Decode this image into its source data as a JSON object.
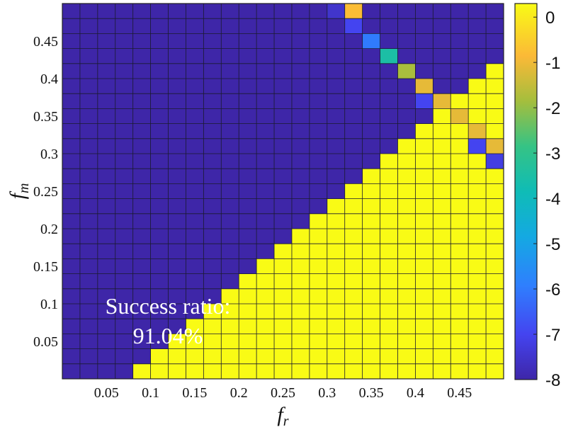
{
  "chart_data": {
    "type": "heatmap",
    "title": "",
    "xlabel": "f",
    "xlabel_sub": "r",
    "ylabel": "f",
    "ylabel_sub": "m",
    "grid_size": [
      25,
      25
    ],
    "xlim": [
      0,
      0.5
    ],
    "ylim": [
      0,
      0.5
    ],
    "x_ticks": [
      0.05,
      0.1,
      0.15,
      0.2,
      0.25,
      0.3,
      0.35,
      0.4,
      0.45
    ],
    "x_tick_labels": [
      "0.05",
      "0.1",
      "0.15",
      "0.2",
      "0.25",
      "0.3",
      "0.35",
      "0.4",
      "0.45"
    ],
    "y_ticks": [
      0.05,
      0.1,
      0.15,
      0.2,
      0.25,
      0.3,
      0.35,
      0.4,
      0.45
    ],
    "y_tick_labels": [
      "0.05",
      "0.1",
      "0.15",
      "0.2",
      "0.25",
      "0.3",
      "0.35",
      "0.4",
      "0.45"
    ],
    "colorbar": {
      "range": [
        -8,
        0.3
      ],
      "ticks": [
        0,
        -1,
        -2,
        -3,
        -4,
        -5,
        -6,
        -7,
        -8
      ],
      "tick_labels": [
        "0",
        "-1",
        "-2",
        "-3",
        "-4",
        "-5",
        "-6",
        "-7",
        "-8"
      ],
      "colormap": "parula"
    },
    "background_value": -8,
    "saturated_value": 0.3,
    "saturated_region": "cells where column index + row-from-top index >= 28 (upper-right triangle)",
    "cells": [
      {
        "col": 15,
        "row_from_top": 0,
        "value": -7.5
      },
      {
        "col": 16,
        "row_from_top": 0,
        "value": -0.8
      },
      {
        "col": 16,
        "row_from_top": 1,
        "value": -7.0
      },
      {
        "col": 17,
        "row_from_top": 2,
        "value": -6.0
      },
      {
        "col": 18,
        "row_from_top": 3,
        "value": -3.5
      },
      {
        "col": 19,
        "row_from_top": 4,
        "value": -1.8
      },
      {
        "col": 20,
        "row_from_top": 5,
        "value": -1.1
      },
      {
        "col": 20,
        "row_from_top": 6,
        "value": -7.0
      },
      {
        "col": 21,
        "row_from_top": 6,
        "value": -1.1
      },
      {
        "col": 22,
        "row_from_top": 7,
        "value": -1.1
      },
      {
        "col": 23,
        "row_from_top": 8,
        "value": -1.1
      },
      {
        "col": 23,
        "row_from_top": 9,
        "value": -7.0
      },
      {
        "col": 24,
        "row_from_top": 9,
        "value": -1.1
      },
      {
        "col": 24,
        "row_from_top": 10,
        "value": -7.2
      }
    ],
    "annotation": {
      "line1": "Success ratio:",
      "line2": "91.04%"
    }
  }
}
